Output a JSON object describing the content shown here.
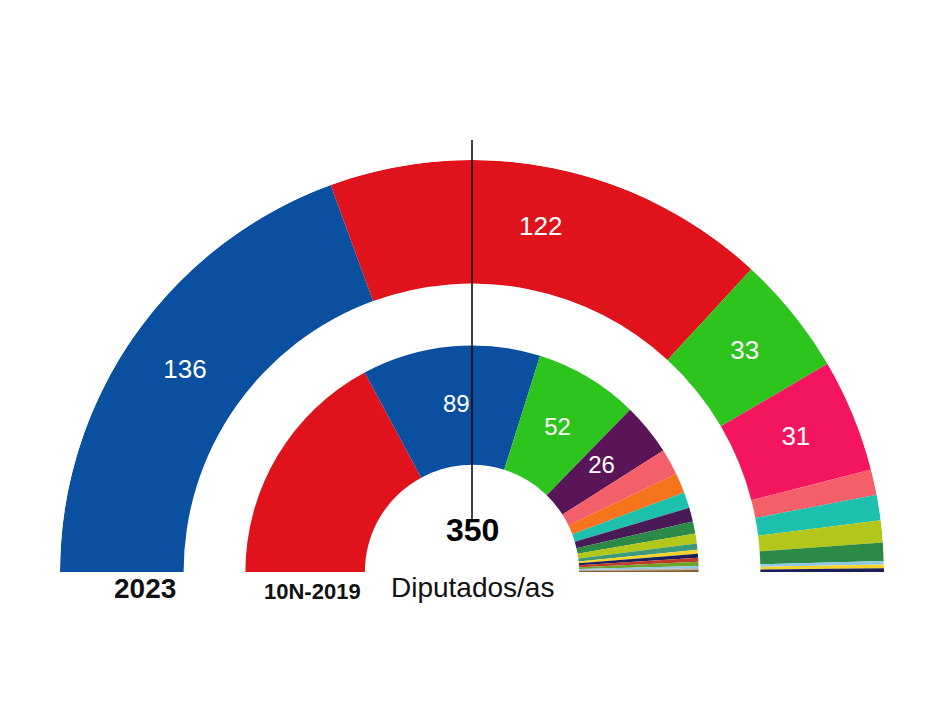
{
  "chart_data": {
    "type": "parliament",
    "total": 350,
    "total_label": "Diputados/as",
    "data_labels": true,
    "series": [
      {
        "name": "2023",
        "values": [
          136,
          122,
          33,
          31,
          7,
          7,
          6,
          5,
          1,
          1,
          1
        ],
        "colors": [
          "#0b4fa0",
          "#e0121c",
          "#2ec41e",
          "#f4155f",
          "#f55f6a",
          "#1dbfad",
          "#b3c61a",
          "#2b8a45",
          "#8fc7e8",
          "#f6d32a",
          "#1a1f5a"
        ],
        "value_labels": [
          "136",
          "122",
          "33",
          "31",
          null,
          null,
          null,
          null,
          null,
          null,
          null
        ]
      },
      {
        "name": "10N-2019",
        "values": [
          120,
          89,
          52,
          26,
          13,
          10,
          8,
          7,
          6,
          5,
          3,
          2,
          2,
          2,
          2,
          1,
          1,
          1
        ],
        "colors": [
          "#e0121c",
          "#0b4fa0",
          "#2ec41e",
          "#5a1558",
          "#f55f6a",
          "#f7731c",
          "#1dbfad",
          "#4a1a58",
          "#2b8a45",
          "#b3c61a",
          "#3a9a7a",
          "#f6d32a",
          "#1a1f5a",
          "#c0392b",
          "#6da32a",
          "#8fc7e8",
          "#b0b0b0",
          "#8a5a2a"
        ],
        "value_labels": [
          null,
          "89",
          "52",
          "26",
          null,
          null,
          null,
          null,
          null,
          null,
          null,
          null,
          null,
          null,
          null,
          null,
          null,
          null
        ]
      }
    ]
  }
}
